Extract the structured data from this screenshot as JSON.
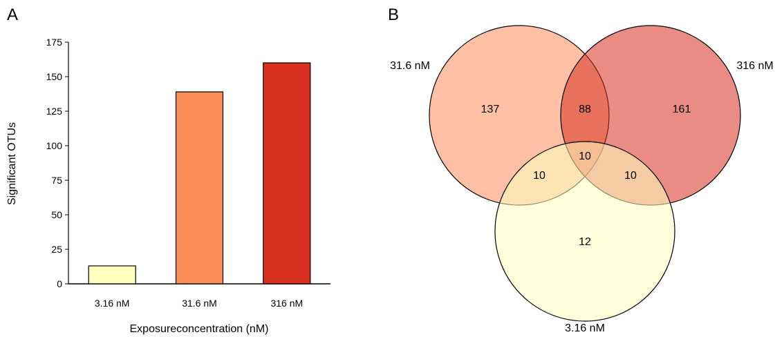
{
  "panels": {
    "a": "A",
    "b": "B"
  },
  "chart_data": [
    {
      "type": "bar",
      "categories": [
        "3.16 nM",
        "31.6 nM",
        "316 nM"
      ],
      "values": [
        13,
        139,
        160
      ],
      "colors": [
        "#FFFFC0",
        "#FC8D59",
        "#D7301F"
      ],
      "xlabel": "Exposureconcentration (nM)",
      "ylabel": "Significant OTUs",
      "ylim": [
        0,
        175
      ],
      "yticks": [
        0,
        25,
        50,
        75,
        100,
        125,
        150,
        175
      ],
      "grid": false
    },
    {
      "type": "venn",
      "sets": [
        {
          "name": "31.6 nM",
          "color": "#FC8D59"
        },
        {
          "name": "316 nM",
          "color": "#D7301F"
        },
        {
          "name": "3.16 nM",
          "color": "#FFFFC0"
        }
      ],
      "regions": [
        {
          "sets": [
            "31.6 nM"
          ],
          "value": 137
        },
        {
          "sets": [
            "316 nM"
          ],
          "value": 161
        },
        {
          "sets": [
            "3.16 nM"
          ],
          "value": 12
        },
        {
          "sets": [
            "31.6 nM",
            "316 nM"
          ],
          "value": 88
        },
        {
          "sets": [
            "31.6 nM",
            "3.16 nM"
          ],
          "value": 10
        },
        {
          "sets": [
            "316 nM",
            "3.16 nM"
          ],
          "value": 10
        },
        {
          "sets": [
            "31.6 nM",
            "316 nM",
            "3.16 nM"
          ],
          "value": 10
        }
      ]
    }
  ]
}
